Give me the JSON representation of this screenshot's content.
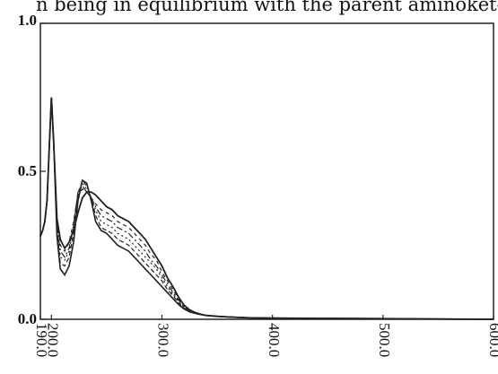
{
  "header_text": "n being in equilibrium with the parent aminoketone",
  "chart_data": {
    "type": "line",
    "title": "",
    "xlabel": "",
    "ylabel": "",
    "xlim": [
      190.0,
      600.0
    ],
    "ylim": [
      0.0,
      1.0
    ],
    "x_ticks": [
      190.0,
      200.0,
      300.0,
      400.0,
      500.0,
      600.0
    ],
    "x_tick_labels": [
      "190.0",
      "200.0",
      "300.0",
      "400.0",
      "500.0",
      "600.0"
    ],
    "y_ticks": [
      0.0,
      0.5,
      1.0
    ],
    "y_tick_labels": [
      "0.0",
      "0.5",
      "1.0"
    ],
    "grid": false,
    "legend": "none",
    "line_color": "#222222",
    "series": [
      {
        "x": [
          190,
          192,
          194,
          196,
          198,
          200,
          202,
          205,
          208,
          212,
          216,
          220,
          224,
          228,
          232,
          236,
          240,
          245,
          250,
          255,
          260,
          265,
          270,
          275,
          280,
          285,
          290,
          295,
          300,
          305,
          310,
          315,
          320,
          325,
          330,
          335,
          340,
          350,
          360,
          380,
          400,
          450,
          500,
          550,
          600
        ],
        "y": [
          0.28,
          0.3,
          0.33,
          0.4,
          0.58,
          0.75,
          0.6,
          0.28,
          0.17,
          0.15,
          0.18,
          0.26,
          0.4,
          0.47,
          0.46,
          0.4,
          0.33,
          0.3,
          0.29,
          0.27,
          0.25,
          0.24,
          0.23,
          0.21,
          0.19,
          0.17,
          0.15,
          0.13,
          0.11,
          0.09,
          0.07,
          0.05,
          0.035,
          0.025,
          0.02,
          0.016,
          0.013,
          0.01,
          0.008,
          0.005,
          0.004,
          0.003,
          0.002,
          0.001,
          0.0
        ]
      },
      {
        "x": [
          190,
          192,
          194,
          196,
          198,
          200,
          202,
          205,
          208,
          212,
          216,
          220,
          224,
          228,
          232,
          236,
          240,
          245,
          250,
          255,
          260,
          265,
          270,
          275,
          280,
          285,
          290,
          295,
          300,
          305,
          310,
          315,
          320,
          325,
          330,
          335,
          340,
          350,
          360,
          380,
          400,
          450,
          500,
          550,
          600
        ],
        "y": [
          0.28,
          0.3,
          0.33,
          0.4,
          0.58,
          0.75,
          0.6,
          0.3,
          0.19,
          0.18,
          0.21,
          0.29,
          0.42,
          0.47,
          0.45,
          0.41,
          0.35,
          0.31,
          0.3,
          0.29,
          0.27,
          0.26,
          0.25,
          0.23,
          0.21,
          0.19,
          0.17,
          0.15,
          0.13,
          0.1,
          0.08,
          0.055,
          0.038,
          0.026,
          0.02,
          0.016,
          0.013,
          0.01,
          0.008,
          0.005,
          0.004,
          0.003,
          0.002,
          0.001,
          0.0
        ]
      },
      {
        "x": [
          190,
          192,
          194,
          196,
          198,
          200,
          202,
          205,
          208,
          212,
          216,
          220,
          224,
          228,
          232,
          236,
          240,
          245,
          250,
          255,
          260,
          265,
          270,
          275,
          280,
          285,
          290,
          295,
          300,
          305,
          310,
          315,
          320,
          325,
          330,
          335,
          340,
          350,
          360,
          380,
          400,
          450,
          500,
          550,
          600
        ],
        "y": [
          0.28,
          0.3,
          0.33,
          0.4,
          0.58,
          0.75,
          0.6,
          0.31,
          0.21,
          0.2,
          0.23,
          0.31,
          0.43,
          0.46,
          0.44,
          0.41,
          0.37,
          0.33,
          0.32,
          0.31,
          0.29,
          0.28,
          0.27,
          0.25,
          0.23,
          0.21,
          0.19,
          0.17,
          0.14,
          0.11,
          0.085,
          0.06,
          0.04,
          0.027,
          0.02,
          0.016,
          0.013,
          0.01,
          0.008,
          0.005,
          0.004,
          0.003,
          0.002,
          0.001,
          0.0
        ]
      },
      {
        "x": [
          190,
          192,
          194,
          196,
          198,
          200,
          202,
          205,
          208,
          212,
          216,
          220,
          224,
          228,
          232,
          236,
          240,
          245,
          250,
          255,
          260,
          265,
          270,
          275,
          280,
          285,
          290,
          295,
          300,
          305,
          310,
          315,
          320,
          325,
          330,
          335,
          340,
          350,
          360,
          380,
          400,
          450,
          500,
          550,
          600
        ],
        "y": [
          0.28,
          0.3,
          0.33,
          0.4,
          0.58,
          0.75,
          0.6,
          0.32,
          0.23,
          0.21,
          0.24,
          0.32,
          0.43,
          0.45,
          0.43,
          0.41,
          0.38,
          0.35,
          0.34,
          0.33,
          0.31,
          0.3,
          0.29,
          0.27,
          0.25,
          0.23,
          0.2,
          0.18,
          0.15,
          0.12,
          0.09,
          0.065,
          0.042,
          0.028,
          0.021,
          0.016,
          0.013,
          0.01,
          0.008,
          0.005,
          0.004,
          0.003,
          0.002,
          0.001,
          0.0
        ]
      },
      {
        "x": [
          190,
          192,
          194,
          196,
          198,
          200,
          202,
          205,
          208,
          212,
          216,
          220,
          224,
          228,
          232,
          236,
          240,
          245,
          250,
          255,
          260,
          265,
          270,
          275,
          280,
          285,
          290,
          295,
          300,
          305,
          310,
          315,
          320,
          325,
          330,
          335,
          340,
          350,
          360,
          380,
          400,
          450,
          500,
          550,
          600
        ],
        "y": [
          0.28,
          0.3,
          0.33,
          0.4,
          0.58,
          0.75,
          0.6,
          0.33,
          0.25,
          0.23,
          0.26,
          0.33,
          0.42,
          0.44,
          0.43,
          0.41,
          0.39,
          0.37,
          0.36,
          0.35,
          0.33,
          0.32,
          0.31,
          0.29,
          0.27,
          0.25,
          0.22,
          0.2,
          0.16,
          0.13,
          0.1,
          0.07,
          0.045,
          0.03,
          0.022,
          0.017,
          0.013,
          0.01,
          0.008,
          0.005,
          0.004,
          0.003,
          0.002,
          0.001,
          0.0
        ]
      },
      {
        "x": [
          190,
          192,
          194,
          196,
          198,
          200,
          202,
          205,
          208,
          212,
          216,
          220,
          224,
          228,
          232,
          236,
          240,
          245,
          250,
          255,
          260,
          265,
          270,
          275,
          280,
          285,
          290,
          295,
          300,
          305,
          310,
          315,
          320,
          325,
          330,
          335,
          340,
          350,
          360,
          380,
          400,
          450,
          500,
          550,
          600
        ],
        "y": [
          0.28,
          0.3,
          0.33,
          0.4,
          0.58,
          0.75,
          0.6,
          0.34,
          0.27,
          0.24,
          0.26,
          0.3,
          0.36,
          0.41,
          0.43,
          0.43,
          0.42,
          0.4,
          0.38,
          0.37,
          0.35,
          0.34,
          0.33,
          0.31,
          0.29,
          0.27,
          0.24,
          0.21,
          0.18,
          0.14,
          0.11,
          0.075,
          0.048,
          0.032,
          0.023,
          0.017,
          0.013,
          0.01,
          0.008,
          0.005,
          0.004,
          0.003,
          0.002,
          0.001,
          0.0
        ]
      }
    ]
  }
}
